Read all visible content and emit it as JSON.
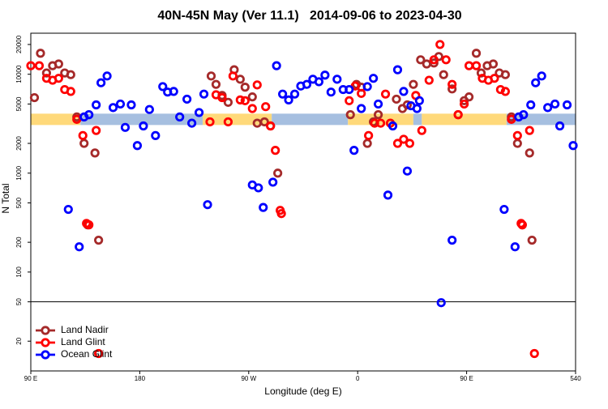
{
  "chart_data": {
    "type": "scatter",
    "title": "40N-45N May (Ver 11.1)   2014-09-06 to 2023-04-30",
    "x_label": "Longitude (deg E)",
    "y_label": "N Total",
    "xlim": [
      90,
      540
    ],
    "ylim": [
      10,
      26000
    ],
    "log_y": true,
    "legend": "lower left",
    "xticks": [
      {
        "value": 90,
        "label": "90 E"
      },
      180,
      {
        "value": 270,
        "label": "90 W"
      },
      {
        "value": 360,
        "label": "0"
      },
      {
        "value": 450,
        "label": "90 E"
      },
      540
    ],
    "yticks": [
      20,
      50,
      100,
      200,
      500,
      1000,
      2000,
      5000,
      10000,
      20000
    ],
    "hline": 50,
    "band": {
      "y": 3500,
      "segments": [
        {
          "x": [
            90,
            131
          ],
          "color": "#ffd97a"
        },
        {
          "x": [
            131,
            232
          ],
          "color": "#a6bfe0"
        },
        {
          "x": [
            232,
            289
          ],
          "color": "#ffd97a"
        },
        {
          "x": [
            289,
            352
          ],
          "color": "#a6bfe0"
        },
        {
          "x": [
            352,
            406
          ],
          "color": "#ffd97a"
        },
        {
          "x": [
            406,
            413
          ],
          "color": "#a6bfe0"
        },
        {
          "x": [
            413,
            483
          ],
          "color": "#ffd97a"
        },
        {
          "x": [
            483,
            540
          ],
          "color": "#a6bfe0"
        }
      ]
    },
    "series": [
      {
        "name": "Land Nadir",
        "color": "#a52a2a",
        "x": [
          93,
          98,
          103,
          108,
          113,
          118,
          123,
          128,
          134,
          143,
          146,
          137,
          239,
          243,
          248,
          253,
          258,
          263,
          267,
          273,
          277,
          283,
          288,
          294,
          354,
          359,
          363,
          368,
          373,
          377,
          392,
          397,
          401,
          406,
          412,
          417,
          423,
          427,
          431,
          438,
          443,
          448,
          452,
          458,
          462,
          467,
          472,
          477,
          482,
          487,
          492,
          502,
          504,
          496
        ],
        "values": [
          5800,
          16300,
          10300,
          12200,
          12700,
          10300,
          9900,
          3700,
          2000,
          1600,
          210,
          300,
          9600,
          7900,
          6100,
          5200,
          11100,
          8900,
          7400,
          5900,
          3200,
          3300,
          3000,
          1000,
          3900,
          7900,
          7400,
          2000,
          3300,
          3900,
          5600,
          4500,
          4900,
          7900,
          14000,
          12700,
          13000,
          15100,
          9900,
          7100,
          3900,
          5400,
          5900,
          16300,
          10300,
          12200,
          12700,
          10300,
          9900,
          3700,
          2000,
          1600,
          210,
          300
        ]
      },
      {
        "name": "Land Glint",
        "color": "#ff0000",
        "x": [
          90,
          97,
          103,
          108,
          113,
          118,
          123,
          128,
          133,
          136,
          138,
          144,
          146,
          238,
          243,
          248,
          253,
          257,
          263,
          267,
          273,
          277,
          284,
          288,
          292,
          296,
          297,
          353,
          358,
          363,
          369,
          374,
          379,
          383,
          387,
          393,
          398,
          403,
          408,
          413,
          419,
          423,
          428,
          433,
          438,
          443,
          448,
          452,
          458,
          463,
          468,
          473,
          478,
          482,
          487,
          492,
          495,
          496,
          502,
          506
        ],
        "values": [
          12200,
          12200,
          9100,
          8700,
          9100,
          7000,
          6700,
          3500,
          2400,
          310,
          300,
          2700,
          15,
          3300,
          6200,
          5800,
          3300,
          9600,
          5500,
          5400,
          4500,
          7800,
          4700,
          3000,
          1700,
          420,
          390,
          5400,
          7600,
          6400,
          2400,
          3200,
          3200,
          6300,
          3200,
          2000,
          2200,
          2000,
          6100,
          2700,
          8700,
          14000,
          20000,
          14000,
          7900,
          3900,
          5000,
          12200,
          12200,
          9100,
          8700,
          9100,
          7000,
          6700,
          3500,
          2400,
          310,
          300,
          2700,
          15
        ]
      },
      {
        "name": "Ocean Glint",
        "color": "#0000ff",
        "x": [
          121,
          130,
          134,
          138,
          144,
          148,
          153,
          158,
          164,
          168,
          173,
          178,
          183,
          188,
          193,
          199,
          203,
          208,
          213,
          219,
          223,
          229,
          233,
          236,
          273,
          278,
          282,
          290,
          293,
          298,
          303,
          308,
          313,
          318,
          323,
          328,
          333,
          338,
          343,
          348,
          353,
          357,
          363,
          368,
          373,
          377,
          385,
          389,
          393,
          398,
          401,
          404,
          409,
          411,
          429,
          438,
          481,
          490,
          493,
          497,
          503,
          507,
          512,
          517,
          523,
          527,
          533,
          538
        ],
        "values": [
          430,
          180,
          3700,
          3900,
          4900,
          8200,
          9600,
          4600,
          5000,
          2900,
          4900,
          1900,
          3000,
          4400,
          2400,
          7500,
          6600,
          6700,
          3700,
          5600,
          3200,
          4100,
          6300,
          480,
          760,
          710,
          450,
          810,
          12200,
          6300,
          5500,
          6300,
          7600,
          7900,
          8900,
          8400,
          9800,
          6600,
          8900,
          7000,
          7000,
          1700,
          4500,
          7500,
          9100,
          5000,
          600,
          3000,
          11100,
          6700,
          1050,
          4800,
          4500,
          5400,
          49,
          210,
          430,
          180,
          3700,
          3900,
          4900,
          8200,
          9600,
          4600,
          5000,
          3000,
          4900,
          1900
        ]
      }
    ]
  }
}
